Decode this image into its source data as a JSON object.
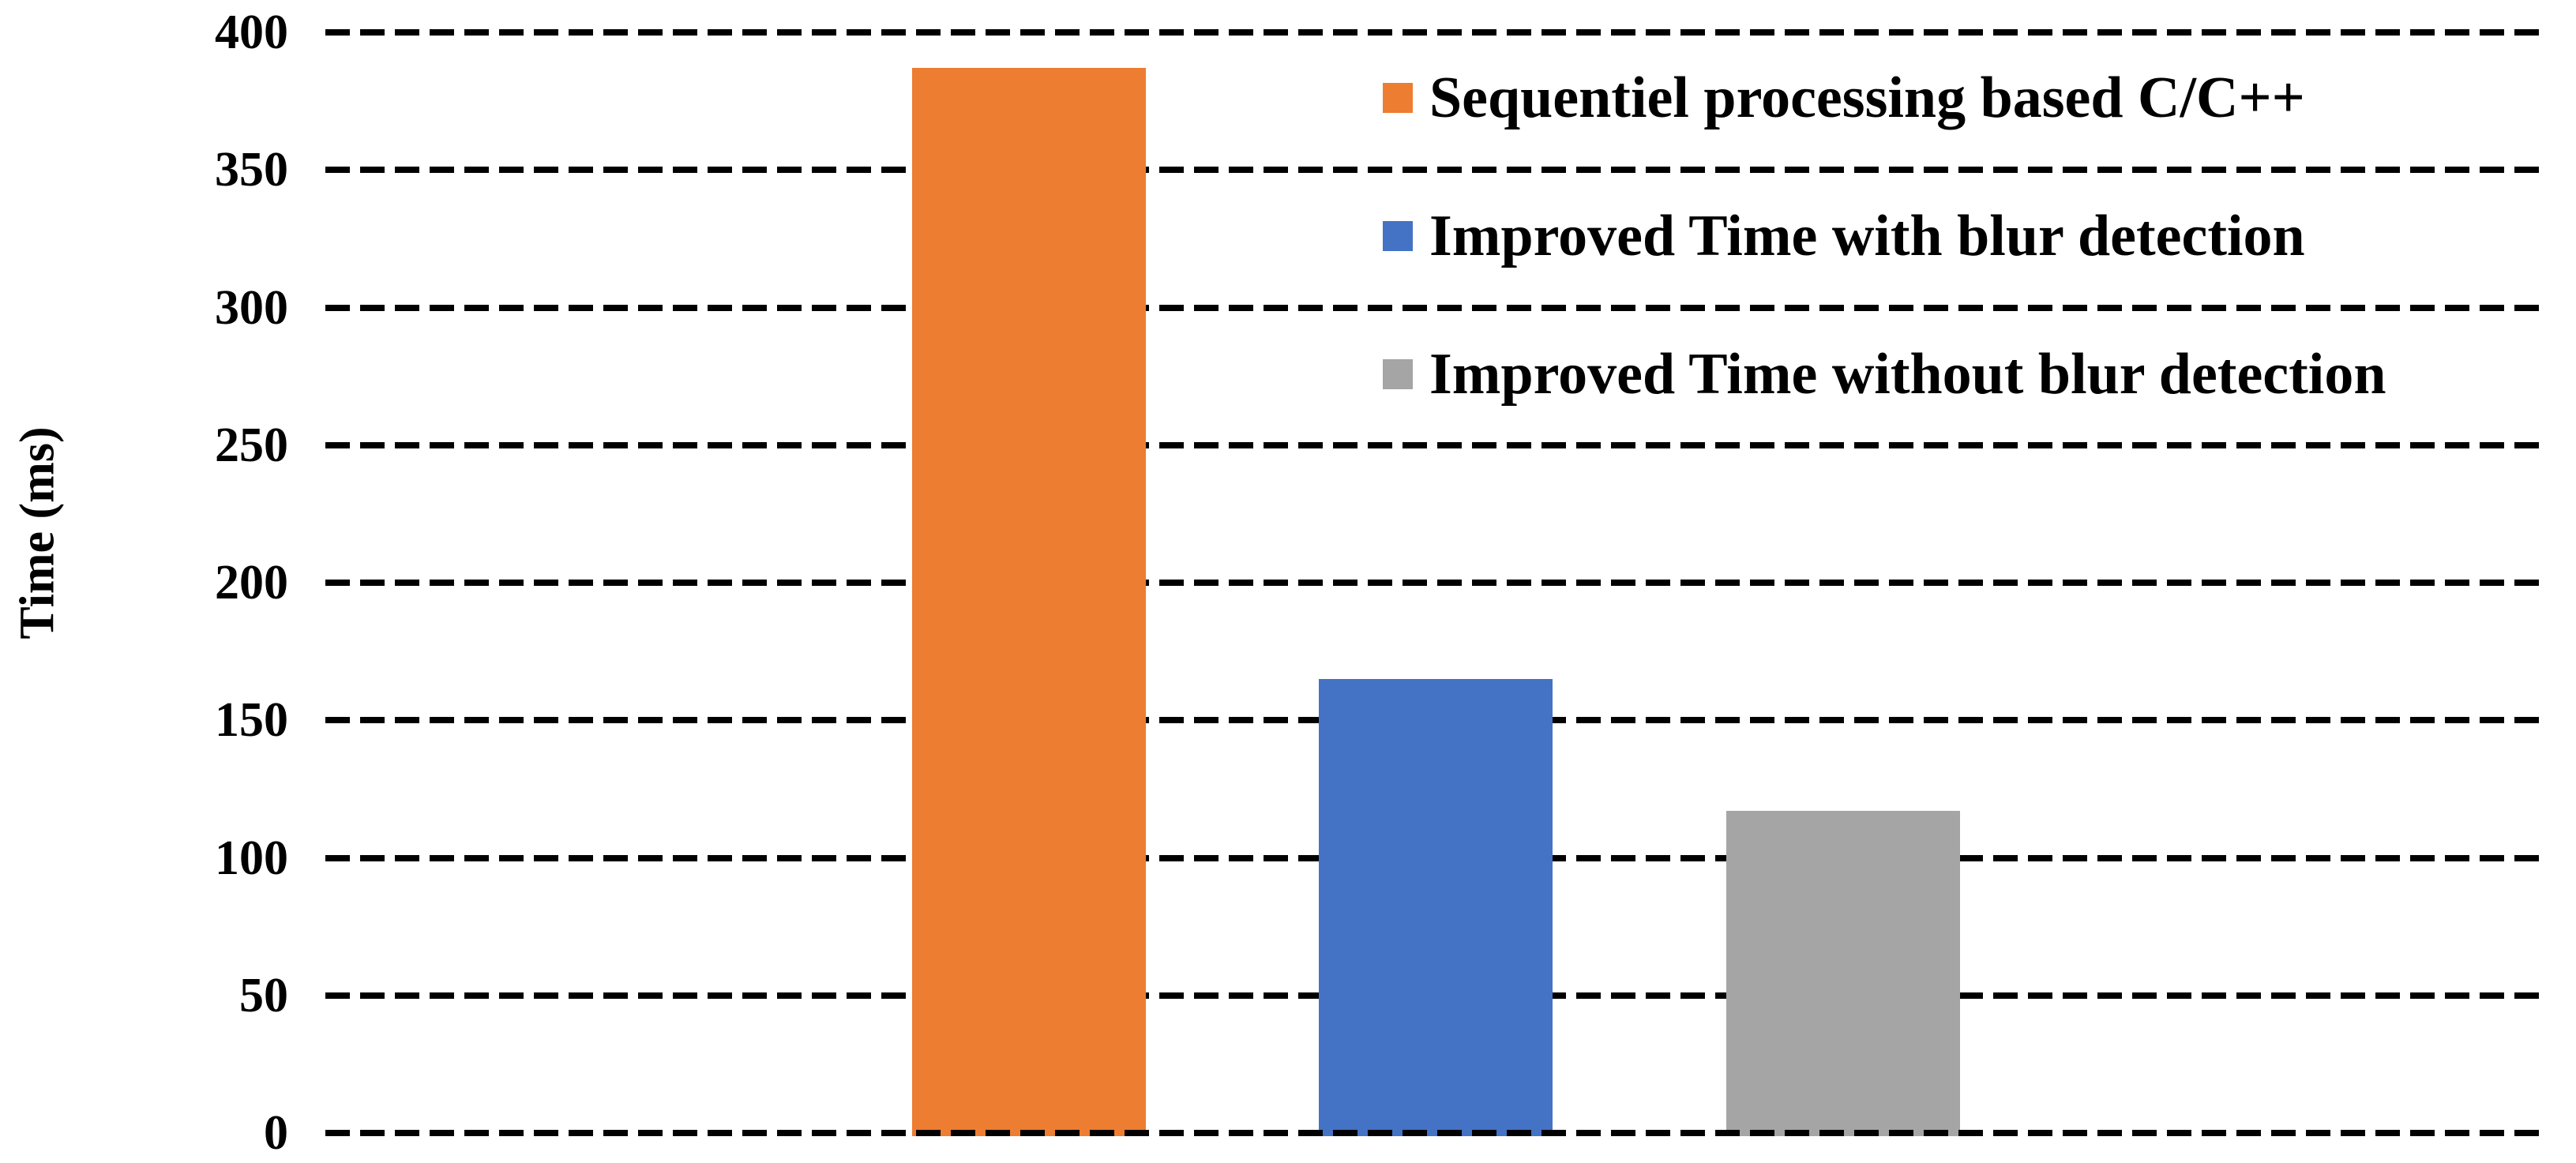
{
  "chart_data": {
    "type": "bar",
    "title": "",
    "xlabel": "",
    "ylabel": "Time (ms)",
    "ylim": [
      0,
      400
    ],
    "ytick_step": 50,
    "yticks": [
      0,
      50,
      100,
      150,
      200,
      250,
      300,
      350,
      400
    ],
    "grid": "horizontal-dashed-black",
    "legend_position": "top-right-inside",
    "categories": [
      "Sequentiel processing based C/C++",
      "Improved Time with blur detection",
      "Improved Time without blur detection"
    ],
    "series": [
      {
        "name": "Sequentiel processing based C/C++",
        "value": 387,
        "color": "#ED7D31"
      },
      {
        "name": "Improved Time with blur detection",
        "value": 165,
        "color": "#4472C4"
      },
      {
        "name": "Improved Time without blur detection",
        "value": 117,
        "color": "#A5A5A5"
      }
    ],
    "colors": {
      "grid": "#000000",
      "text": "#000000",
      "background": "#FFFFFF"
    }
  }
}
